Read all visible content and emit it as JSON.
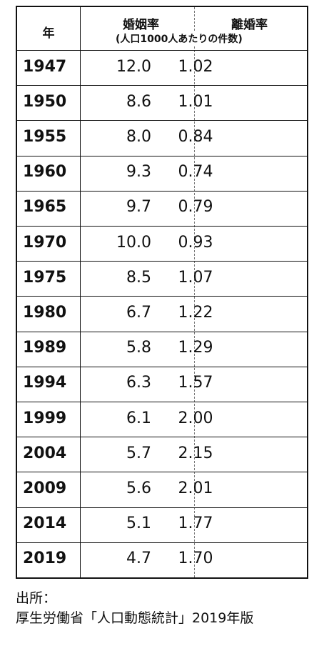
{
  "table": {
    "header": {
      "year": "年",
      "marriage": "婚姻率",
      "marriage_note": "(人口1000人あたりの件数)",
      "divorce": "離婚率"
    },
    "rows": [
      [
        "1947",
        "12.0",
        "1.02"
      ],
      [
        "1950",
        "8.6",
        "1.01"
      ],
      [
        "1955",
        "8.0",
        "0.84"
      ],
      [
        "1960",
        "9.3",
        "0.74"
      ],
      [
        "1965",
        "9.7",
        "0.79"
      ],
      [
        "1970",
        "10.0",
        "0.93"
      ],
      [
        "1975",
        "8.5",
        "1.07"
      ],
      [
        "1980",
        "6.7",
        "1.22"
      ],
      [
        "1989",
        "5.8",
        "1.29"
      ],
      [
        "1994",
        "6.3",
        "1.57"
      ],
      [
        "1999",
        "6.1",
        "2.00"
      ],
      [
        "2004",
        "5.7",
        "2.15"
      ],
      [
        "2009",
        "5.6",
        "2.01"
      ],
      [
        "2014",
        "5.1",
        "1.77"
      ],
      [
        "2019",
        "4.7",
        "1.70"
      ]
    ]
  },
  "source": {
    "label": "出所：",
    "text": "厚生労働省「人口動態統計」2019年版"
  }
}
